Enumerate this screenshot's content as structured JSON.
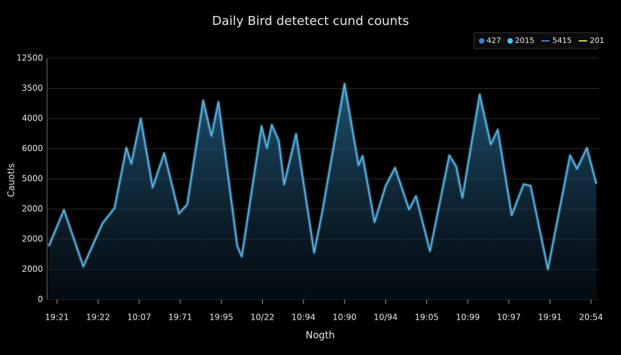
{
  "chart_data": {
    "type": "area",
    "title": "Daily Bird detetect cund counts",
    "xlabel": "Nogth",
    "ylabel": "Cauotls",
    "color": "#5ab8e8",
    "grid": true,
    "legend_position": "upper right",
    "legend": [
      {
        "label": "427",
        "color": "#3b7fd6",
        "marker": "dot"
      },
      {
        "label": "2015",
        "color": "#3fc6e8",
        "marker": "dot"
      },
      {
        "label": "5415",
        "color": "#3b7fd6",
        "marker": "line"
      },
      {
        "label": "201",
        "color": "#c8e04a",
        "marker": "line"
      }
    ],
    "xlim": [
      -0.24,
      13.19
    ],
    "xticks": [
      {
        "value": 0,
        "label": "19:21"
      },
      {
        "value": 1,
        "label": "19:22"
      },
      {
        "value": 2,
        "label": "10:07"
      },
      {
        "value": 3,
        "label": "19:71"
      },
      {
        "value": 4,
        "label": "19:95"
      },
      {
        "value": 5,
        "label": "10/22"
      },
      {
        "value": 6,
        "label": "10:94"
      },
      {
        "value": 7,
        "label": "10:90"
      },
      {
        "value": 8,
        "label": "10/94"
      },
      {
        "value": 9,
        "label": "19:05"
      },
      {
        "value": 10,
        "label": "10:99"
      },
      {
        "value": 11,
        "label": "10:97"
      },
      {
        "value": 12,
        "label": "19:91"
      },
      {
        "value": 13,
        "label": "20:54"
      }
    ],
    "ylim": [
      0,
      8
    ],
    "yticks": [
      0,
      {
        "value": 1,
        "label": "2000"
      },
      {
        "value": 2,
        "label": "2000"
      },
      {
        "value": 3,
        "label": "2000"
      },
      {
        "value": 4,
        "label": "5000"
      },
      {
        "value": 5,
        "label": "6000"
      },
      {
        "value": 6,
        "label": "4000"
      },
      {
        "value": 7,
        "label": "3500"
      },
      {
        "value": 8,
        "label": "12500"
      }
    ],
    "x": [
      -0.2,
      0.17,
      0.64,
      1.11,
      1.4,
      1.69,
      1.81,
      2.04,
      2.33,
      2.61,
      2.97,
      3.17,
      3.56,
      3.76,
      3.93,
      4.39,
      4.5,
      4.98,
      5.11,
      5.23,
      5.4,
      5.53,
      5.82,
      6.26,
      6.46,
      7.0,
      7.34,
      7.44,
      7.73,
      8.0,
      8.23,
      8.57,
      8.74,
      9.08,
      9.55,
      9.72,
      9.87,
      10.29,
      10.56,
      10.73,
      11.07,
      11.36,
      11.53,
      11.95,
      12.49,
      12.66,
      12.9,
      13.13
    ],
    "values": [
      1.77,
      2.97,
      1.1,
      2.53,
      3.03,
      5.03,
      4.51,
      6.0,
      3.72,
      4.85,
      2.85,
      3.15,
      6.6,
      5.43,
      6.55,
      1.77,
      1.43,
      5.75,
      5.03,
      5.79,
      5.26,
      3.82,
      5.49,
      1.56,
      2.92,
      7.15,
      4.46,
      4.76,
      2.57,
      3.77,
      4.37,
      2.99,
      3.43,
      1.61,
      4.78,
      4.41,
      3.38,
      6.8,
      5.15,
      5.63,
      2.8,
      3.82,
      3.77,
      1.01,
      4.78,
      4.34,
      5.03,
      3.84
    ]
  }
}
